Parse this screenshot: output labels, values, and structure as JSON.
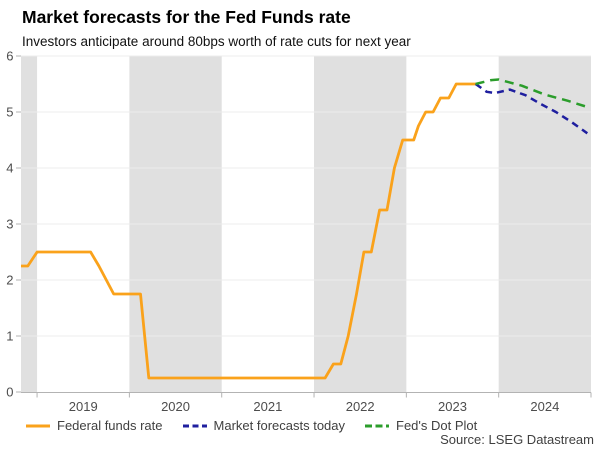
{
  "header": {
    "title": "Market forecasts for the Fed Funds rate",
    "subtitle": "Investors anticipate around 80bps worth of rate cuts for next year"
  },
  "chart_data": {
    "type": "line",
    "title": "Market forecasts for the Fed Funds rate",
    "subtitle": "Investors anticipate around 80bps worth of rate cuts for next year",
    "xlim": [
      2018.826,
      2025.0
    ],
    "ylim": [
      0,
      6
    ],
    "yticks": [
      0,
      1,
      2,
      3,
      4,
      5,
      6
    ],
    "xtick_boundaries": [
      2019,
      2020,
      2021,
      2022,
      2023,
      2024,
      2025
    ],
    "xlabels": [
      {
        "text": "2019",
        "x": 2019.5
      },
      {
        "text": "2020",
        "x": 2020.5
      },
      {
        "text": "2021",
        "x": 2021.5
      },
      {
        "text": "2022",
        "x": 2022.5
      },
      {
        "text": "2023",
        "x": 2023.5
      },
      {
        "text": "2024",
        "x": 2024.5
      }
    ],
    "shaded_bands": [
      [
        2018.826,
        2019
      ],
      [
        2020,
        2021
      ],
      [
        2022,
        2023
      ],
      [
        2024,
        2025
      ]
    ],
    "band_color": "#e0e0e0",
    "grid_color": "#ececec",
    "axis_color": "#b3b3b3",
    "tick_label_color": "#4d4d4d",
    "legend_position": "bottom",
    "series": [
      {
        "name": "Federal funds rate",
        "color": "#FAA21B",
        "style": "solid",
        "dash": "none",
        "width": 2.8,
        "points": [
          [
            2018.826,
            2.25
          ],
          [
            2018.9,
            2.25
          ],
          [
            2019.0,
            2.5
          ],
          [
            2019.58,
            2.5
          ],
          [
            2019.67,
            2.25
          ],
          [
            2019.75,
            2.0
          ],
          [
            2019.83,
            1.75
          ],
          [
            2020.12,
            1.75
          ],
          [
            2020.21,
            0.25
          ],
          [
            2022.12,
            0.25
          ],
          [
            2022.21,
            0.5
          ],
          [
            2022.29,
            0.5
          ],
          [
            2022.37,
            1.0
          ],
          [
            2022.46,
            1.75
          ],
          [
            2022.54,
            2.5
          ],
          [
            2022.62,
            2.5
          ],
          [
            2022.71,
            3.25
          ],
          [
            2022.79,
            3.25
          ],
          [
            2022.87,
            4.0
          ],
          [
            2022.96,
            4.5
          ],
          [
            2023.08,
            4.5
          ],
          [
            2023.13,
            4.75
          ],
          [
            2023.21,
            5.0
          ],
          [
            2023.29,
            5.0
          ],
          [
            2023.37,
            5.25
          ],
          [
            2023.46,
            5.25
          ],
          [
            2023.54,
            5.5
          ],
          [
            2023.75,
            5.5
          ]
        ]
      },
      {
        "name": "Market forecasts today",
        "color": "#1F1F9F",
        "style": "dashed",
        "dash": "7 5",
        "width": 2.5,
        "points": [
          [
            2023.75,
            5.5
          ],
          [
            2023.87,
            5.36
          ],
          [
            2023.96,
            5.34
          ],
          [
            2024.12,
            5.4
          ],
          [
            2024.29,
            5.3
          ],
          [
            2024.46,
            5.14
          ],
          [
            2024.62,
            5.0
          ],
          [
            2024.79,
            4.82
          ],
          [
            2024.96,
            4.62
          ]
        ]
      },
      {
        "name": "Fed's Dot Plot",
        "color": "#2B9D2B",
        "style": "dashed",
        "dash": "9 6",
        "width": 2.5,
        "points": [
          [
            2023.75,
            5.5
          ],
          [
            2023.92,
            5.57
          ],
          [
            2024.0,
            5.58
          ],
          [
            2024.25,
            5.47
          ],
          [
            2024.5,
            5.31
          ],
          [
            2024.75,
            5.2
          ],
          [
            2024.96,
            5.09
          ]
        ]
      }
    ]
  },
  "legend": {
    "items": [
      {
        "label": "Federal funds rate",
        "color": "#FAA21B",
        "dash": "none"
      },
      {
        "label": "Market forecasts today",
        "color": "#1F1F9F",
        "dash": "6 3.5"
      },
      {
        "label": "Fed's Dot Plot",
        "color": "#2B9D2B",
        "dash": "7 3.5"
      }
    ]
  },
  "footer": {
    "source": "Source: LSEG Datastream"
  }
}
